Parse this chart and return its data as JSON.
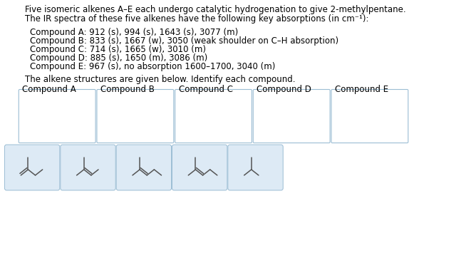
{
  "title_line1": "Five isomeric alkenes A–E each undergo catalytic hydrogenation to give 2-methylpentane.",
  "title_line2": "The IR spectra of these five alkenes have the following key absorptions (in cm⁻¹):",
  "compounds_info": [
    "Compound A: 912 (s), 994 (s), 1643 (s), 3077 (m)",
    "Compound B: 833 (s), 1667 (w), 3050 (weak shoulder on C–H absorption)",
    "Compound C: 714 (s), 1665 (w), 3010 (m)",
    "Compound D: 885 (s), 1650 (m), 3086 (m)",
    "Compound E: 967 (s), no absorption 1600–1700, 3040 (m)"
  ],
  "footer_text": "The alkene structures are given below. Identify each compound.",
  "compound_labels": [
    "Compound A",
    "Compound B",
    "Compound C",
    "Compound D",
    "Compound E"
  ],
  "bg_color": "#ffffff",
  "box_border_color": "#9bbdd4",
  "box_fill_color": "#ddeaf5",
  "empty_box_border_color": "#9bbdd4",
  "empty_box_fill_color": "#ffffff",
  "text_color": "#000000",
  "font_size_body": 8.5,
  "font_size_label": 8.5,
  "line_color": "#555555"
}
